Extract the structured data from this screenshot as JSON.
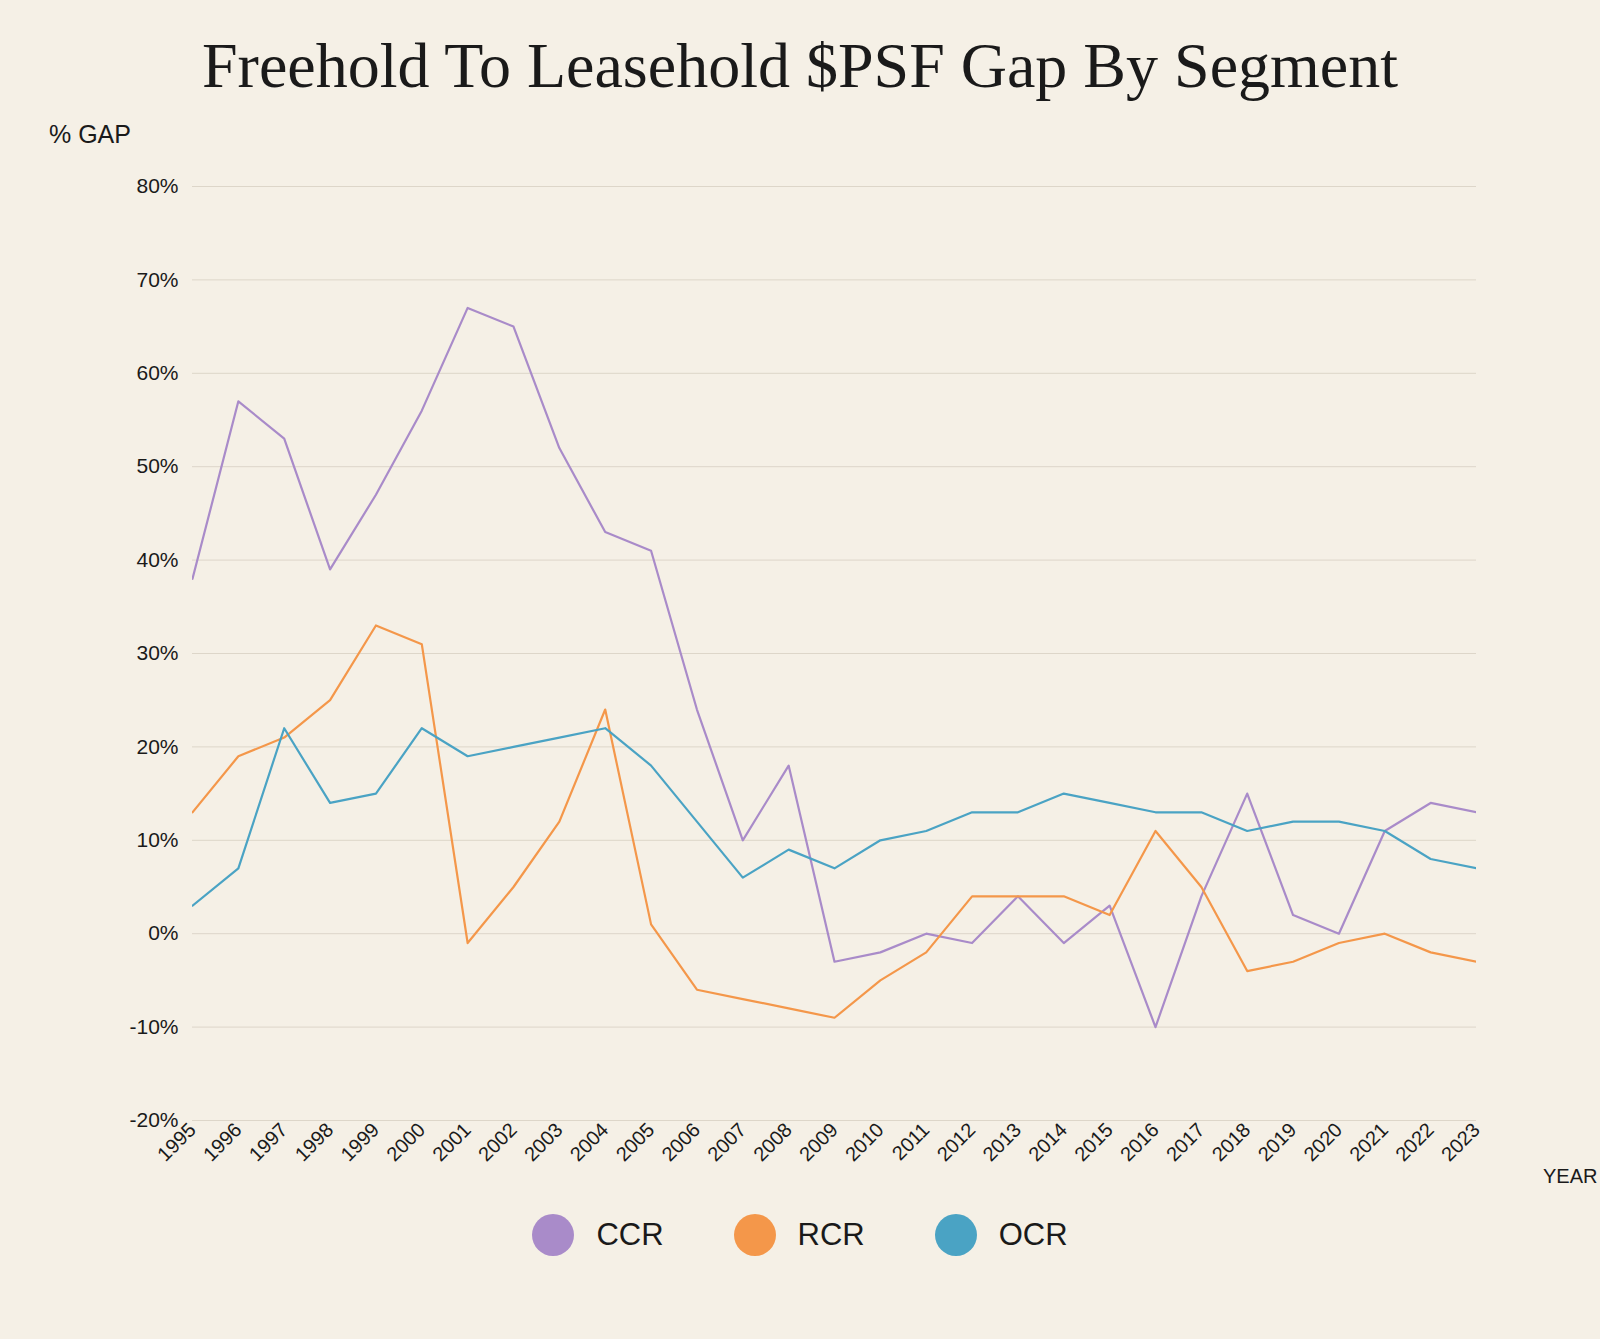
{
  "chart_data": {
    "type": "line",
    "title": "Freehold To Leasehold $PSF Gap By Segment",
    "y_label": "% GAP",
    "x_label": "YEAR",
    "x": [
      1995,
      1996,
      1997,
      1998,
      1999,
      2000,
      2001,
      2002,
      2003,
      2004,
      2005,
      2006,
      2007,
      2008,
      2009,
      2010,
      2011,
      2012,
      2013,
      2014,
      2015,
      2016,
      2017,
      2018,
      2019,
      2020,
      2021,
      2022,
      2023
    ],
    "series": [
      {
        "name": "CCR",
        "color": "#a98bc9",
        "values": [
          38,
          57,
          53,
          39,
          47,
          56,
          67,
          65,
          52,
          43,
          41,
          24,
          10,
          18,
          -3,
          -2,
          0,
          -1,
          4,
          -1,
          3,
          -10,
          4,
          15,
          2,
          0,
          11,
          14,
          13
        ]
      },
      {
        "name": "RCR",
        "color": "#f4974a",
        "values": [
          13,
          19,
          21,
          25,
          33,
          31,
          -1,
          5,
          12,
          24,
          1,
          -6,
          -7,
          -8,
          -9,
          -5,
          -2,
          4,
          4,
          4,
          2,
          11,
          5,
          -4,
          -3,
          -1,
          0,
          -2,
          -3
        ]
      },
      {
        "name": "OCR",
        "color": "#4aa3c4",
        "values": [
          3,
          7,
          22,
          14,
          15,
          22,
          19,
          20,
          21,
          22,
          18,
          12,
          6,
          9,
          7,
          10,
          11,
          13,
          13,
          15,
          14,
          13,
          13,
          11,
          12,
          12,
          11,
          8,
          7
        ]
      }
    ],
    "xlim": [
      1995,
      2023
    ],
    "xticks": [
      1995,
      1996,
      1997,
      1998,
      1999,
      2000,
      2001,
      2002,
      2003,
      2004,
      2005,
      2006,
      2007,
      2008,
      2009,
      2010,
      2011,
      2012,
      2013,
      2014,
      2015,
      2016,
      2017,
      2018,
      2019,
      2020,
      2021,
      2022,
      2023
    ],
    "ylim": [
      -20,
      80
    ],
    "yticks": [
      {
        "value": -20,
        "label": "-20%"
      },
      {
        "value": -10,
        "label": "-10%"
      },
      {
        "value": 0,
        "label": "0%"
      },
      {
        "value": 10,
        "label": "10%"
      },
      {
        "value": 20,
        "label": "20%"
      },
      {
        "value": 30,
        "label": "30%"
      },
      {
        "value": 40,
        "label": "40%"
      },
      {
        "value": 50,
        "label": "50%"
      },
      {
        "value": 60,
        "label": "60%"
      },
      {
        "value": 70,
        "label": "70%"
      },
      {
        "value": 80,
        "label": "80%"
      }
    ],
    "grid": true,
    "legend": "bottom"
  }
}
